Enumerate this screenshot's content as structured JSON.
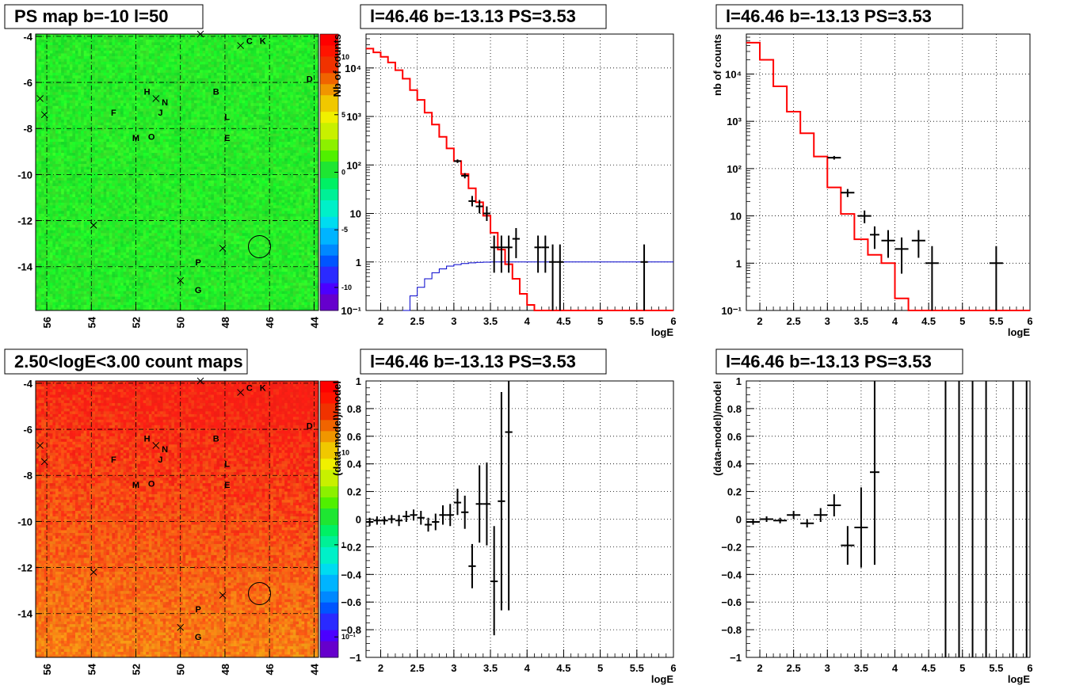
{
  "colors": {
    "model": "#ff0000",
    "blue_curve": "#0000cc",
    "data": "#000000"
  },
  "chart_data": [
    {
      "type": "heatmap",
      "title": "PS map b=-10 l=50",
      "x_ticks": [
        "56",
        "54",
        "52",
        "50",
        "48",
        "46",
        "44"
      ],
      "y_ticks": [
        "-4",
        "-6",
        "-8",
        "-10",
        "-12",
        "-14"
      ],
      "xlim": [
        56.5,
        43.8
      ],
      "ylim": [
        -15.9,
        -3.9
      ],
      "colorbar": {
        "scale": "linear",
        "range": [
          -12,
          12
        ],
        "ticks": [
          "10",
          "5",
          "0",
          "-5",
          "-10"
        ],
        "tick_values": [
          10,
          5,
          0,
          -5,
          -10
        ]
      },
      "base_color": "#1ee632",
      "sources": [
        {
          "label": "C",
          "l": 46.9,
          "b": -4.2
        },
        {
          "label": "K",
          "l": 46.3,
          "b": -4.2
        },
        {
          "label": "D",
          "l": 44.2,
          "b": -5.85
        },
        {
          "label": "B",
          "l": 48.4,
          "b": -6.4
        },
        {
          "label": "H",
          "l": 51.5,
          "b": -6.4
        },
        {
          "label": "N",
          "l": 50.7,
          "b": -6.85
        },
        {
          "label": "F",
          "l": 53.0,
          "b": -7.3
        },
        {
          "label": "J",
          "l": 50.9,
          "b": -7.3
        },
        {
          "label": "L",
          "l": 47.9,
          "b": -7.5
        },
        {
          "label": "M",
          "l": 52.0,
          "b": -8.4
        },
        {
          "label": "O",
          "l": 51.3,
          "b": -8.35
        },
        {
          "label": "E",
          "l": 47.9,
          "b": -8.4
        },
        {
          "label": "P",
          "l": 49.2,
          "b": -13.8
        },
        {
          "label": "G",
          "l": 49.2,
          "b": -15.0
        }
      ],
      "crosses": [
        {
          "l": 49.1,
          "b": -3.9
        },
        {
          "l": 47.3,
          "b": -4.4
        },
        {
          "l": 56.3,
          "b": -6.7
        },
        {
          "l": 51.1,
          "b": -6.7
        },
        {
          "l": 56.1,
          "b": -7.4
        },
        {
          "l": 53.9,
          "b": -12.2
        },
        {
          "l": 48.1,
          "b": -13.2
        },
        {
          "l": 50.0,
          "b": -14.6
        }
      ],
      "circle": {
        "l": 46.45,
        "b": -13.13
      }
    },
    {
      "type": "heatmap",
      "title": "2.50<logE<3.00 count maps",
      "x_ticks": [
        "56",
        "54",
        "52",
        "50",
        "48",
        "46",
        "44"
      ],
      "y_ticks": [
        "-4",
        "-6",
        "-8",
        "-10",
        "-12",
        "-14"
      ],
      "xlim": [
        56.5,
        43.8
      ],
      "ylim": [
        -15.9,
        -3.9
      ],
      "colorbar": {
        "scale": "log",
        "range": [
          0.06,
          60
        ],
        "ticks": [
          "10",
          "1",
          "10⁻¹"
        ],
        "tick_values": [
          10,
          1,
          0.1
        ]
      },
      "sources": [
        {
          "label": "C",
          "l": 46.9,
          "b": -4.2
        },
        {
          "label": "K",
          "l": 46.3,
          "b": -4.2
        },
        {
          "label": "D",
          "l": 44.2,
          "b": -5.85
        },
        {
          "label": "B",
          "l": 48.4,
          "b": -6.4
        },
        {
          "label": "H",
          "l": 51.5,
          "b": -6.4
        },
        {
          "label": "N",
          "l": 50.7,
          "b": -6.85
        },
        {
          "label": "F",
          "l": 53.0,
          "b": -7.3
        },
        {
          "label": "J",
          "l": 50.9,
          "b": -7.3
        },
        {
          "label": "L",
          "l": 47.9,
          "b": -7.5
        },
        {
          "label": "M",
          "l": 52.0,
          "b": -8.4
        },
        {
          "label": "O",
          "l": 51.3,
          "b": -8.35
        },
        {
          "label": "E",
          "l": 47.9,
          "b": -8.4
        },
        {
          "label": "P",
          "l": 49.2,
          "b": -13.8
        },
        {
          "label": "G",
          "l": 49.2,
          "b": -15.0
        }
      ],
      "crosses": [
        {
          "l": 49.1,
          "b": -3.9
        },
        {
          "l": 47.3,
          "b": -4.4
        },
        {
          "l": 56.3,
          "b": -6.7
        },
        {
          "l": 51.1,
          "b": -6.7
        },
        {
          "l": 56.1,
          "b": -7.4
        },
        {
          "l": 53.9,
          "b": -12.2
        },
        {
          "l": 48.1,
          "b": -13.2
        },
        {
          "l": 50.0,
          "b": -14.6
        }
      ],
      "circle": {
        "l": 46.45,
        "b": -13.13
      }
    },
    {
      "type": "line",
      "title": "l=46.46 b=-13.13 PS=3.53",
      "xlabel": "logE",
      "ylabel": "Nb of counts",
      "xlim": [
        1.8,
        6.0
      ],
      "ylim": [
        0.1,
        50000
      ],
      "yscale": "log",
      "x_ticks": [
        "2",
        "2.5",
        "3",
        "3.5",
        "4",
        "4.5",
        "5",
        "5.5",
        "6"
      ],
      "y_ticks": [
        "10⁻¹",
        "1",
        "10",
        "10²",
        "10³",
        "10⁴"
      ],
      "y_tick_values": [
        0.1,
        1,
        10,
        100,
        1000,
        10000
      ],
      "model_step": {
        "edges": [
          1.8,
          1.9,
          2.0,
          2.1,
          2.2,
          2.3,
          2.4,
          2.5,
          2.6,
          2.7,
          2.8,
          2.9,
          3.0,
          3.1,
          3.2,
          3.3,
          3.4,
          3.5,
          3.6,
          3.7,
          3.8,
          3.9,
          4.0,
          4.1,
          4.2,
          4.3,
          4.4,
          4.5,
          6.0
        ],
        "values": [
          25000,
          21000,
          17000,
          13000,
          9000,
          6000,
          3500,
          2200,
          1200,
          680,
          380,
          220,
          120,
          65,
          33,
          17,
          9,
          4,
          1.8,
          0.9,
          0.45,
          0.22,
          0.13,
          0.1,
          0.1,
          0.1,
          0.1,
          0.1
        ]
      },
      "blue_step": {
        "edges": [
          2.3,
          2.4,
          2.5,
          2.6,
          2.7,
          2.8,
          2.9,
          3.0,
          3.1,
          3.2,
          3.3,
          3.4,
          3.5,
          3.6,
          6.0
        ],
        "values": [
          0.1,
          0.2,
          0.3,
          0.45,
          0.6,
          0.72,
          0.82,
          0.88,
          0.93,
          0.96,
          0.98,
          0.99,
          1.0,
          1.0
        ]
      },
      "points": [
        {
          "x": 3.05,
          "y": 120,
          "xe": 0.05,
          "ylo": 110,
          "yhi": 130
        },
        {
          "x": 3.15,
          "y": 60,
          "xe": 0.05,
          "ylo": 53,
          "yhi": 68
        },
        {
          "x": 3.25,
          "y": 18,
          "xe": 0.05,
          "ylo": 14,
          "yhi": 23
        },
        {
          "x": 3.35,
          "y": 14,
          "xe": 0.05,
          "ylo": 10,
          "yhi": 19
        },
        {
          "x": 3.45,
          "y": 10,
          "xe": 0.05,
          "ylo": 7,
          "yhi": 14
        },
        {
          "x": 3.55,
          "y": 2,
          "xe": 0.05,
          "ylo": 0.6,
          "yhi": 3.5
        },
        {
          "x": 3.65,
          "y": 2,
          "xe": 0.05,
          "ylo": 0.6,
          "yhi": 3.5
        },
        {
          "x": 3.75,
          "y": 2,
          "xe": 0.05,
          "ylo": 0.6,
          "yhi": 3.5
        },
        {
          "x": 3.85,
          "y": 3,
          "xe": 0.05,
          "ylo": 1.2,
          "yhi": 5
        },
        {
          "x": 4.15,
          "y": 2,
          "xe": 0.05,
          "ylo": 0.6,
          "yhi": 3.5
        },
        {
          "x": 4.25,
          "y": 2,
          "xe": 0.05,
          "ylo": 0.6,
          "yhi": 3.5
        },
        {
          "x": 4.35,
          "y": 1,
          "xe": 0.05,
          "ylo": 0.1,
          "yhi": 2.3
        },
        {
          "x": 4.45,
          "y": 1,
          "xe": 0.05,
          "ylo": 0.1,
          "yhi": 2.3
        },
        {
          "x": 5.6,
          "y": 1,
          "xe": 0.05,
          "ylo": 0.1,
          "yhi": 2.3
        }
      ]
    },
    {
      "type": "line",
      "title": "l=46.46 b=-13.13 PS=3.53",
      "xlabel": "logE",
      "ylabel": "nb of counts",
      "xlim": [
        1.8,
        6.0
      ],
      "ylim": [
        0.1,
        70000
      ],
      "yscale": "log",
      "x_ticks": [
        "2",
        "2.5",
        "3",
        "3.5",
        "4",
        "4.5",
        "5",
        "5.5",
        "6"
      ],
      "y_ticks": [
        "10⁻¹",
        "1",
        "10",
        "10²",
        "10³",
        "10⁴"
      ],
      "y_tick_values": [
        0.1,
        1,
        10,
        100,
        1000,
        10000
      ],
      "model_step": {
        "edges": [
          1.8,
          2.0,
          2.2,
          2.4,
          2.6,
          2.8,
          3.0,
          3.2,
          3.4,
          3.6,
          3.8,
          4.0,
          4.2,
          4.4,
          6.0
        ],
        "values": [
          46000,
          20000,
          5500,
          1600,
          560,
          180,
          40,
          11,
          3.2,
          1.5,
          1,
          0.18,
          0.1,
          0.1
        ]
      },
      "points": [
        {
          "x": 3.1,
          "y": 170,
          "xe": 0.1,
          "ylo": 155,
          "yhi": 185
        },
        {
          "x": 3.3,
          "y": 31,
          "xe": 0.1,
          "ylo": 25,
          "yhi": 37
        },
        {
          "x": 3.55,
          "y": 10,
          "xe": 0.1,
          "ylo": 7,
          "yhi": 13
        },
        {
          "x": 3.7,
          "y": 4,
          "xe": 0.07,
          "ylo": 2,
          "yhi": 6
        },
        {
          "x": 3.9,
          "y": 3,
          "xe": 0.1,
          "ylo": 1.3,
          "yhi": 5
        },
        {
          "x": 4.1,
          "y": 2,
          "xe": 0.1,
          "ylo": 0.6,
          "yhi": 3.5
        },
        {
          "x": 4.35,
          "y": 3,
          "xe": 0.1,
          "ylo": 1.3,
          "yhi": 5
        },
        {
          "x": 4.55,
          "y": 1,
          "xe": 0.1,
          "ylo": 0.1,
          "yhi": 2.3
        },
        {
          "x": 5.5,
          "y": 1,
          "xe": 0.1,
          "ylo": 0.1,
          "yhi": 2.3
        }
      ]
    },
    {
      "type": "scatter",
      "title": "l=46.46 b=-13.13 PS=3.53",
      "xlabel": "logE",
      "ylabel": "(data-model)/model",
      "xlim": [
        1.8,
        6.0
      ],
      "ylim": [
        -1,
        1
      ],
      "x_ticks": [
        "2",
        "2.5",
        "3",
        "3.5",
        "4",
        "4.5",
        "5",
        "5.5",
        "6"
      ],
      "y_ticks": [
        "1",
        "0.8",
        "0.6",
        "0.4",
        "0.2",
        "0",
        "−0.2",
        "−0.4",
        "−0.6",
        "−0.8",
        "−1"
      ],
      "y_tick_values": [
        1,
        0.8,
        0.6,
        0.4,
        0.2,
        0,
        -0.2,
        -0.4,
        -0.6,
        -0.8,
        -1
      ],
      "points": [
        {
          "x": 1.85,
          "y": -0.02,
          "xe": 0.05,
          "ylo": -0.05,
          "yhi": 0.01
        },
        {
          "x": 1.95,
          "y": -0.01,
          "xe": 0.05,
          "ylo": -0.04,
          "yhi": 0.02
        },
        {
          "x": 2.05,
          "y": -0.01,
          "xe": 0.05,
          "ylo": -0.04,
          "yhi": 0.02
        },
        {
          "x": 2.15,
          "y": 0.0,
          "xe": 0.05,
          "ylo": -0.03,
          "yhi": 0.03
        },
        {
          "x": 2.25,
          "y": -0.01,
          "xe": 0.05,
          "ylo": -0.05,
          "yhi": 0.03
        },
        {
          "x": 2.35,
          "y": 0.02,
          "xe": 0.05,
          "ylo": -0.02,
          "yhi": 0.06
        },
        {
          "x": 2.45,
          "y": 0.03,
          "xe": 0.05,
          "ylo": -0.01,
          "yhi": 0.07
        },
        {
          "x": 2.55,
          "y": 0.01,
          "xe": 0.05,
          "ylo": -0.04,
          "yhi": 0.06
        },
        {
          "x": 2.65,
          "y": -0.04,
          "xe": 0.05,
          "ylo": -0.09,
          "yhi": 0.01
        },
        {
          "x": 2.75,
          "y": -0.02,
          "xe": 0.05,
          "ylo": -0.08,
          "yhi": 0.04
        },
        {
          "x": 2.85,
          "y": 0.03,
          "xe": 0.05,
          "ylo": -0.04,
          "yhi": 0.1
        },
        {
          "x": 2.95,
          "y": 0.03,
          "xe": 0.05,
          "ylo": -0.05,
          "yhi": 0.11
        },
        {
          "x": 3.05,
          "y": 0.12,
          "xe": 0.05,
          "ylo": 0.03,
          "yhi": 0.22
        },
        {
          "x": 3.15,
          "y": 0.05,
          "xe": 0.05,
          "ylo": -0.07,
          "yhi": 0.17
        },
        {
          "x": 3.25,
          "y": -0.34,
          "xe": 0.05,
          "ylo": -0.5,
          "yhi": -0.18
        },
        {
          "x": 3.35,
          "y": 0.11,
          "xe": 0.05,
          "ylo": -0.17,
          "yhi": 0.39
        },
        {
          "x": 3.45,
          "y": 0.11,
          "xe": 0.05,
          "ylo": -0.19,
          "yhi": 0.41
        },
        {
          "x": 3.55,
          "y": -0.45,
          "xe": 0.05,
          "ylo": -0.84,
          "yhi": -0.05
        },
        {
          "x": 3.65,
          "y": 0.13,
          "xe": 0.05,
          "ylo": -0.66,
          "yhi": 0.92
        },
        {
          "x": 3.75,
          "y": 0.63,
          "xe": 0.05,
          "ylo": -0.66,
          "yhi": 1.0
        }
      ]
    },
    {
      "type": "scatter",
      "title": "l=46.46 b=-13.13 PS=3.53",
      "xlabel": "logE",
      "ylabel": "(data-model)/model",
      "xlim": [
        1.8,
        6.0
      ],
      "ylim": [
        -1,
        1
      ],
      "x_ticks": [
        "2",
        "2.5",
        "3",
        "3.5",
        "4",
        "4.5",
        "5",
        "5.5",
        "6"
      ],
      "y_ticks": [
        "1",
        "0.8",
        "0.6",
        "0.4",
        "0.2",
        "0",
        "−0.2",
        "−0.4",
        "−0.6",
        "−0.8",
        "−1"
      ],
      "y_tick_values": [
        1,
        0.8,
        0.6,
        0.4,
        0.2,
        0,
        -0.2,
        -0.4,
        -0.6,
        -0.8,
        -1
      ],
      "points": [
        {
          "x": 1.9,
          "y": -0.02,
          "xe": 0.1,
          "ylo": -0.04,
          "yhi": 0.0
        },
        {
          "x": 2.1,
          "y": 0.0,
          "xe": 0.1,
          "ylo": -0.02,
          "yhi": 0.02
        },
        {
          "x": 2.3,
          "y": -0.01,
          "xe": 0.1,
          "ylo": -0.03,
          "yhi": 0.01
        },
        {
          "x": 2.5,
          "y": 0.03,
          "xe": 0.1,
          "ylo": 0.0,
          "yhi": 0.06
        },
        {
          "x": 2.7,
          "y": -0.03,
          "xe": 0.1,
          "ylo": -0.06,
          "yhi": 0.0
        },
        {
          "x": 2.9,
          "y": 0.03,
          "xe": 0.1,
          "ylo": -0.02,
          "yhi": 0.08
        },
        {
          "x": 3.1,
          "y": 0.1,
          "xe": 0.1,
          "ylo": 0.02,
          "yhi": 0.18
        },
        {
          "x": 3.3,
          "y": -0.19,
          "xe": 0.1,
          "ylo": -0.33,
          "yhi": -0.05
        },
        {
          "x": 3.5,
          "y": -0.06,
          "xe": 0.1,
          "ylo": -0.35,
          "yhi": 0.23
        },
        {
          "x": 3.7,
          "y": 0.34,
          "xe": 0.07,
          "ylo": -0.33,
          "yhi": 1.0
        },
        {
          "x": 4.75,
          "y": 0.0,
          "xe": 0,
          "ylo": -1.0,
          "yhi": 1.0
        },
        {
          "x": 4.95,
          "y": 0.0,
          "xe": 0,
          "ylo": -1.0,
          "yhi": 1.0
        },
        {
          "x": 5.15,
          "y": 0.0,
          "xe": 0,
          "ylo": -1.0,
          "yhi": 1.0
        },
        {
          "x": 5.35,
          "y": 0.0,
          "xe": 0,
          "ylo": -1.0,
          "yhi": 1.0
        },
        {
          "x": 5.75,
          "y": 0.0,
          "xe": 0,
          "ylo": -1.0,
          "yhi": 1.0
        },
        {
          "x": 5.95,
          "y": 0.0,
          "xe": 0,
          "ylo": -1.0,
          "yhi": 1.0
        }
      ]
    }
  ]
}
